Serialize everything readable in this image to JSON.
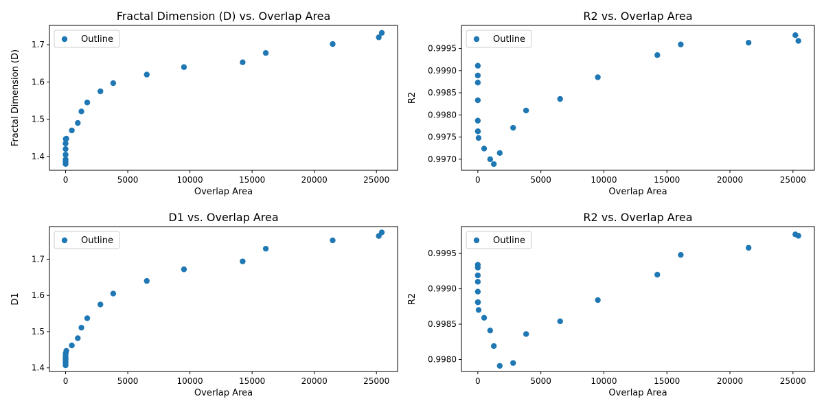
{
  "figure": {
    "marker_color": "#1f77b4"
  },
  "chart_data": [
    {
      "type": "scatter",
      "title": "Fractal Dimension (D) vs. Overlap Area",
      "xlabel": "Overlap Area",
      "ylabel": "Fractal Dimension (D)",
      "xlim": [
        -1300,
        26700
      ],
      "ylim": [
        1.363,
        1.752
      ],
      "xticks": [
        0,
        5000,
        10000,
        15000,
        20000,
        25000
      ],
      "xtick_labels": [
        "0",
        "5000",
        "10000",
        "15000",
        "20000",
        "25000"
      ],
      "yticks": [
        1.4,
        1.5,
        1.6,
        1.7
      ],
      "ytick_labels": [
        "1.4",
        "1.5",
        "1.6",
        "1.7"
      ],
      "legend": {
        "position": "upper-left",
        "entries": [
          "Outline"
        ]
      },
      "grid": false,
      "series": [
        {
          "name": "Outline",
          "x": [
            0,
            0,
            0,
            0,
            0,
            0,
            10,
            60,
            500,
            980,
            1270,
            1740,
            2800,
            3830,
            6530,
            9520,
            14240,
            16100,
            21480,
            25190,
            25430
          ],
          "y": [
            1.38,
            1.386,
            1.392,
            1.405,
            1.42,
            1.435,
            1.447,
            1.448,
            1.47,
            1.49,
            1.521,
            1.545,
            1.575,
            1.597,
            1.62,
            1.64,
            1.653,
            1.678,
            1.702,
            1.72,
            1.732
          ]
        }
      ]
    },
    {
      "type": "scatter",
      "title": "R2 vs. Overlap Area",
      "xlabel": "Overlap Area",
      "ylabel": "R2",
      "xlim": [
        -1300,
        26700
      ],
      "ylim": [
        0.99675,
        1.00002
      ],
      "xticks": [
        0,
        5000,
        10000,
        15000,
        20000,
        25000
      ],
      "xtick_labels": [
        "0",
        "5000",
        "10000",
        "15000",
        "20000",
        "25000"
      ],
      "yticks": [
        0.997,
        0.9975,
        0.998,
        0.9985,
        0.999,
        0.9995
      ],
      "ytick_labels": [
        "0.9970",
        "0.9975",
        "0.9980",
        "0.9985",
        "0.9990",
        "0.9995"
      ],
      "legend": {
        "position": "upper-left",
        "entries": [
          "Outline"
        ]
      },
      "grid": false,
      "series": [
        {
          "name": "Outline",
          "x": [
            0,
            0,
            0,
            0,
            0,
            0,
            10,
            60,
            500,
            980,
            1270,
            1740,
            2800,
            3830,
            6530,
            9520,
            14240,
            16100,
            21480,
            25190,
            25430
          ],
          "y": [
            0.99911,
            0.99889,
            0.99873,
            0.99833,
            0.99787,
            0.99763,
            0.99763,
            0.99748,
            0.99724,
            0.997,
            0.99689,
            0.99714,
            0.99771,
            0.9981,
            0.99836,
            0.99885,
            0.99935,
            0.99959,
            0.99963,
            0.9998,
            0.99967
          ]
        }
      ]
    },
    {
      "type": "scatter",
      "title": "D1 vs. Overlap Area",
      "xlabel": "Overlap Area",
      "ylabel": "D1",
      "xlim": [
        -1300,
        26700
      ],
      "ylim": [
        1.39,
        1.79
      ],
      "xticks": [
        0,
        5000,
        10000,
        15000,
        20000,
        25000
      ],
      "xtick_labels": [
        "0",
        "5000",
        "10000",
        "15000",
        "20000",
        "25000"
      ],
      "yticks": [
        1.4,
        1.5,
        1.6,
        1.7
      ],
      "ytick_labels": [
        "1.4",
        "1.5",
        "1.6",
        "1.7"
      ],
      "legend": {
        "position": "upper-left",
        "entries": [
          "Outline"
        ]
      },
      "grid": false,
      "series": [
        {
          "name": "Outline",
          "x": [
            0,
            0,
            0,
            0,
            0,
            0,
            10,
            60,
            500,
            980,
            1270,
            1740,
            2800,
            3830,
            6530,
            9520,
            14240,
            16100,
            21480,
            25190,
            25430
          ],
          "y": [
            1.407,
            1.412,
            1.418,
            1.423,
            1.428,
            1.433,
            1.44,
            1.447,
            1.462,
            1.482,
            1.511,
            1.537,
            1.575,
            1.605,
            1.64,
            1.672,
            1.694,
            1.729,
            1.752,
            1.764,
            1.774
          ]
        }
      ]
    },
    {
      "type": "scatter",
      "title": "R2 vs. Overlap Area",
      "xlabel": "Overlap Area",
      "ylabel": "R2",
      "xlim": [
        -1300,
        26700
      ],
      "ylim": [
        0.99783,
        0.99988
      ],
      "xticks": [
        0,
        5000,
        10000,
        15000,
        20000,
        25000
      ],
      "xtick_labels": [
        "0",
        "5000",
        "10000",
        "15000",
        "20000",
        "25000"
      ],
      "yticks": [
        0.998,
        0.9985,
        0.999,
        0.9995
      ],
      "ytick_labels": [
        "0.9980",
        "0.9985",
        "0.9990",
        "0.9995"
      ],
      "legend": {
        "position": "upper-left",
        "entries": [
          "Outline"
        ]
      },
      "grid": false,
      "series": [
        {
          "name": "Outline",
          "x": [
            0,
            0,
            0,
            0,
            0,
            0,
            10,
            60,
            500,
            980,
            1270,
            1740,
            2800,
            3830,
            6530,
            9520,
            14240,
            16100,
            21480,
            25190,
            25430
          ],
          "y": [
            0.99934,
            0.9993,
            0.99919,
            0.9991,
            0.99896,
            0.99881,
            0.99881,
            0.9987,
            0.99859,
            0.99841,
            0.99819,
            0.99791,
            0.99795,
            0.99836,
            0.99854,
            0.99884,
            0.9992,
            0.99948,
            0.99958,
            0.99977,
            0.99975
          ]
        }
      ]
    }
  ]
}
